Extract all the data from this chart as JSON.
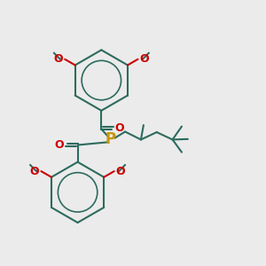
{
  "bg_color": "#ebebeb",
  "bond_color": "#2d6b5e",
  "bond_lw": 1.5,
  "aromatic_lw": 1.2,
  "P_color": "#c8960a",
  "O_color": "#cc0000",
  "text_color": "#2d6b5e",
  "P_fontsize": 10,
  "O_fontsize": 9,
  "methoxy_fontsize": 8,
  "figsize": [
    3.0,
    3.0
  ],
  "dpi": 100,
  "xlim": [
    0,
    10
  ],
  "ylim": [
    0,
    10
  ]
}
